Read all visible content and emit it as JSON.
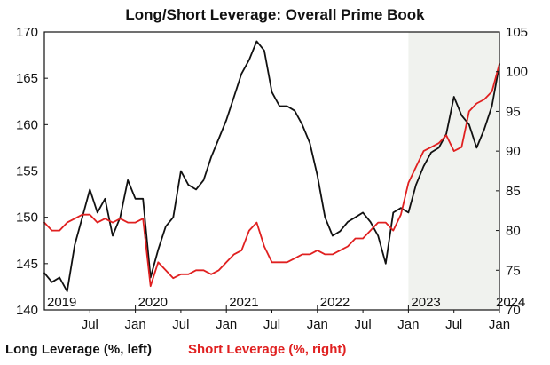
{
  "chart_data": {
    "type": "line",
    "title": "Long/Short Leverage: Overall Prime Book",
    "x_range": [
      "2019-01",
      "2024-01"
    ],
    "y_left": {
      "lim": [
        140,
        170
      ],
      "ticks": [
        140,
        145,
        150,
        155,
        160,
        165,
        170
      ]
    },
    "y_right": {
      "lim": [
        70,
        105
      ],
      "ticks": [
        70,
        75,
        80,
        85,
        90,
        95,
        100,
        105
      ]
    },
    "x_year_labels": [
      "2019",
      "2020",
      "2021",
      "2022",
      "2023",
      "2024"
    ],
    "x_month_labels": [
      "Jul",
      "Jan",
      "Jul",
      "Jan",
      "Jul",
      "Jan",
      "Jul",
      "Jan",
      "Jul",
      "Jan"
    ],
    "shaded_region": {
      "from": "2023-01",
      "to": "2024-01",
      "color": "#f0f2ee"
    },
    "grid": false,
    "legend_position": "bottom",
    "series": [
      {
        "name": "Long Leverage (%, left)",
        "axis": "left",
        "color": "#111111",
        "x": [
          "2019-01",
          "2019-02",
          "2019-03",
          "2019-04",
          "2019-05",
          "2019-06",
          "2019-07",
          "2019-08",
          "2019-09",
          "2019-10",
          "2019-11",
          "2019-12",
          "2020-01",
          "2020-02",
          "2020-03",
          "2020-04",
          "2020-05",
          "2020-06",
          "2020-07",
          "2020-08",
          "2020-09",
          "2020-10",
          "2020-11",
          "2020-12",
          "2021-01",
          "2021-02",
          "2021-03",
          "2021-04",
          "2021-05",
          "2021-06",
          "2021-07",
          "2021-08",
          "2021-09",
          "2021-10",
          "2021-11",
          "2021-12",
          "2022-01",
          "2022-02",
          "2022-03",
          "2022-04",
          "2022-05",
          "2022-06",
          "2022-07",
          "2022-08",
          "2022-09",
          "2022-10",
          "2022-11",
          "2022-12",
          "2023-01",
          "2023-02",
          "2023-03",
          "2023-04",
          "2023-05",
          "2023-06",
          "2023-07",
          "2023-08",
          "2023-09",
          "2023-10",
          "2023-11",
          "2023-12",
          "2024-01"
        ],
        "values": [
          144,
          143,
          143.5,
          142,
          147,
          150,
          153,
          150.5,
          152,
          148,
          150,
          154,
          152,
          152,
          143.5,
          146.5,
          149,
          150,
          155,
          153.5,
          153,
          154,
          156.5,
          158.5,
          160.5,
          163,
          165.5,
          167,
          169,
          168,
          163.5,
          162,
          162,
          161.5,
          160,
          158,
          154.5,
          150,
          148,
          148.5,
          149.5,
          150,
          150.5,
          149.5,
          148,
          145,
          150.5,
          151,
          150.5,
          153.5,
          155.5,
          157,
          157.5,
          159,
          163,
          161,
          160,
          157.5,
          159.5,
          162,
          166.5
        ]
      },
      {
        "name": "Short Leverage (%, right)",
        "axis": "right",
        "color": "#e02020",
        "x": [
          "2019-01",
          "2019-02",
          "2019-03",
          "2019-04",
          "2019-05",
          "2019-06",
          "2019-07",
          "2019-08",
          "2019-09",
          "2019-10",
          "2019-11",
          "2019-12",
          "2020-01",
          "2020-02",
          "2020-03",
          "2020-04",
          "2020-05",
          "2020-06",
          "2020-07",
          "2020-08",
          "2020-09",
          "2020-10",
          "2020-11",
          "2020-12",
          "2021-01",
          "2021-02",
          "2021-03",
          "2021-04",
          "2021-05",
          "2021-06",
          "2021-07",
          "2021-08",
          "2021-09",
          "2021-10",
          "2021-11",
          "2021-12",
          "2022-01",
          "2022-02",
          "2022-03",
          "2022-04",
          "2022-05",
          "2022-06",
          "2022-07",
          "2022-08",
          "2022-09",
          "2022-10",
          "2022-11",
          "2022-12",
          "2023-01",
          "2023-02",
          "2023-03",
          "2023-04",
          "2023-05",
          "2023-06",
          "2023-07",
          "2023-08",
          "2023-09",
          "2023-10",
          "2023-11",
          "2023-12",
          "2024-01"
        ],
        "values": [
          81,
          80,
          80,
          81,
          81.5,
          82,
          82,
          81,
          81.5,
          81,
          81.5,
          81,
          81,
          81.5,
          73,
          76,
          75,
          74,
          74.5,
          74.5,
          75,
          75,
          74.5,
          75,
          76,
          77,
          77.5,
          80,
          81,
          78,
          76,
          76,
          76,
          76.5,
          77,
          77,
          77.5,
          77,
          77,
          77.5,
          78,
          79,
          79,
          80,
          81,
          81,
          80,
          82,
          86,
          88,
          90,
          90.5,
          91,
          92,
          90,
          90.5,
          95,
          96,
          96.5,
          97.5,
          101
        ]
      }
    ]
  },
  "legend": {
    "long_label": "Long Leverage (%, left)",
    "short_label": "Short Leverage (%, right)"
  }
}
